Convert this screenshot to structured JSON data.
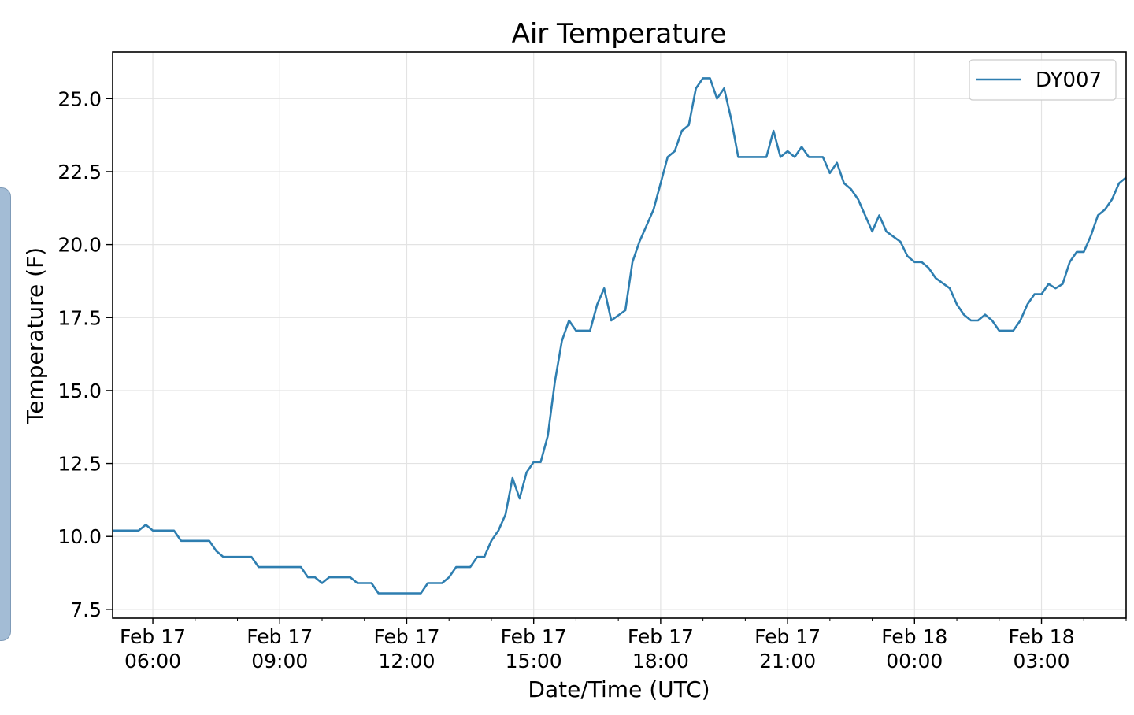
{
  "chart_data": {
    "type": "line",
    "title": "Air Temperature",
    "xlabel": "Date/Time (UTC)",
    "ylabel": "Temperature (F)",
    "ylim": [
      7.2,
      26.6
    ],
    "xlim": [
      "2017-02-17T05:03",
      "2017-02-18T05:00"
    ],
    "yticks": [
      7.5,
      10.0,
      12.5,
      15.0,
      17.5,
      20.0,
      22.5,
      25.0
    ],
    "xticks": [
      {
        "t": "2017-02-17T06:00",
        "date": "Feb 17",
        "time": "06:00"
      },
      {
        "t": "2017-02-17T09:00",
        "date": "Feb 17",
        "time": "09:00"
      },
      {
        "t": "2017-02-17T12:00",
        "date": "Feb 17",
        "time": "12:00"
      },
      {
        "t": "2017-02-17T15:00",
        "date": "Feb 17",
        "time": "15:00"
      },
      {
        "t": "2017-02-17T18:00",
        "date": "Feb 17",
        "time": "18:00"
      },
      {
        "t": "2017-02-17T21:00",
        "date": "Feb 17",
        "time": "21:00"
      },
      {
        "t": "2017-02-18T00:00",
        "date": "Feb 18",
        "time": "00:00"
      },
      {
        "t": "2017-02-18T03:00",
        "date": "Feb 18",
        "time": "03:00"
      }
    ],
    "grid": true,
    "legend_position": "top-right",
    "colors": {
      "series": "#2e7eb0",
      "grid": "#e3e3e3"
    },
    "series": [
      {
        "name": "DY007",
        "points": [
          [
            "2017-02-17T05:03",
            10.2
          ],
          [
            "2017-02-17T05:40",
            10.2
          ],
          [
            "2017-02-17T05:50",
            10.4
          ],
          [
            "2017-02-17T06:00",
            10.2
          ],
          [
            "2017-02-17T06:30",
            10.2
          ],
          [
            "2017-02-17T06:40",
            9.85
          ],
          [
            "2017-02-17T07:20",
            9.85
          ],
          [
            "2017-02-17T07:30",
            9.5
          ],
          [
            "2017-02-17T07:40",
            9.3
          ],
          [
            "2017-02-17T08:20",
            9.3
          ],
          [
            "2017-02-17T08:30",
            8.95
          ],
          [
            "2017-02-17T09:30",
            8.95
          ],
          [
            "2017-02-17T09:40",
            8.6
          ],
          [
            "2017-02-17T09:50",
            8.6
          ],
          [
            "2017-02-17T10:00",
            8.4
          ],
          [
            "2017-02-17T10:10",
            8.6
          ],
          [
            "2017-02-17T10:40",
            8.6
          ],
          [
            "2017-02-17T10:50",
            8.4
          ],
          [
            "2017-02-17T11:10",
            8.4
          ],
          [
            "2017-02-17T11:20",
            8.05
          ],
          [
            "2017-02-17T12:20",
            8.05
          ],
          [
            "2017-02-17T12:30",
            8.4
          ],
          [
            "2017-02-17T12:50",
            8.4
          ],
          [
            "2017-02-17T13:00",
            8.6
          ],
          [
            "2017-02-17T13:10",
            8.95
          ],
          [
            "2017-02-17T13:30",
            8.95
          ],
          [
            "2017-02-17T13:40",
            9.3
          ],
          [
            "2017-02-17T13:50",
            9.3
          ],
          [
            "2017-02-17T14:00",
            9.85
          ],
          [
            "2017-02-17T14:10",
            10.2
          ],
          [
            "2017-02-17T14:20",
            10.75
          ],
          [
            "2017-02-17T14:30",
            12.0
          ],
          [
            "2017-02-17T14:40",
            11.3
          ],
          [
            "2017-02-17T14:50",
            12.2
          ],
          [
            "2017-02-17T15:00",
            12.55
          ],
          [
            "2017-02-17T15:10",
            12.55
          ],
          [
            "2017-02-17T15:20",
            13.45
          ],
          [
            "2017-02-17T15:30",
            15.3
          ],
          [
            "2017-02-17T15:40",
            16.7
          ],
          [
            "2017-02-17T15:50",
            17.4
          ],
          [
            "2017-02-17T16:00",
            17.05
          ],
          [
            "2017-02-17T16:20",
            17.05
          ],
          [
            "2017-02-17T16:30",
            17.95
          ],
          [
            "2017-02-17T16:40",
            18.5
          ],
          [
            "2017-02-17T16:50",
            17.4
          ],
          [
            "2017-02-17T17:10",
            17.75
          ],
          [
            "2017-02-17T17:20",
            19.4
          ],
          [
            "2017-02-17T17:30",
            20.1
          ],
          [
            "2017-02-17T17:40",
            20.65
          ],
          [
            "2017-02-17T17:50",
            21.2
          ],
          [
            "2017-02-17T18:00",
            22.1
          ],
          [
            "2017-02-17T18:10",
            23.0
          ],
          [
            "2017-02-17T18:20",
            23.2
          ],
          [
            "2017-02-17T18:30",
            23.9
          ],
          [
            "2017-02-17T18:40",
            24.1
          ],
          [
            "2017-02-17T18:50",
            25.35
          ],
          [
            "2017-02-17T19:00",
            25.7
          ],
          [
            "2017-02-17T19:10",
            25.7
          ],
          [
            "2017-02-17T19:20",
            25.0
          ],
          [
            "2017-02-17T19:30",
            25.35
          ],
          [
            "2017-02-17T19:40",
            24.3
          ],
          [
            "2017-02-17T19:50",
            23.0
          ],
          [
            "2017-02-17T20:30",
            23.0
          ],
          [
            "2017-02-17T20:40",
            23.9
          ],
          [
            "2017-02-17T20:50",
            23.0
          ],
          [
            "2017-02-17T21:00",
            23.2
          ],
          [
            "2017-02-17T21:10",
            23.0
          ],
          [
            "2017-02-17T21:20",
            23.35
          ],
          [
            "2017-02-17T21:30",
            23.0
          ],
          [
            "2017-02-17T21:50",
            23.0
          ],
          [
            "2017-02-17T22:00",
            22.45
          ],
          [
            "2017-02-17T22:10",
            22.8
          ],
          [
            "2017-02-17T22:20",
            22.1
          ],
          [
            "2017-02-17T22:30",
            21.9
          ],
          [
            "2017-02-17T22:40",
            21.55
          ],
          [
            "2017-02-17T22:50",
            21.0
          ],
          [
            "2017-02-17T23:00",
            20.45
          ],
          [
            "2017-02-17T23:10",
            21.0
          ],
          [
            "2017-02-17T23:20",
            20.45
          ],
          [
            "2017-02-17T23:40",
            20.1
          ],
          [
            "2017-02-17T23:50",
            19.6
          ],
          [
            "2017-02-18T00:00",
            19.4
          ],
          [
            "2017-02-18T00:10",
            19.4
          ],
          [
            "2017-02-18T00:20",
            19.2
          ],
          [
            "2017-02-18T00:30",
            18.85
          ],
          [
            "2017-02-18T00:50",
            18.5
          ],
          [
            "2017-02-18T01:00",
            17.95
          ],
          [
            "2017-02-18T01:10",
            17.6
          ],
          [
            "2017-02-18T01:20",
            17.4
          ],
          [
            "2017-02-18T01:30",
            17.4
          ],
          [
            "2017-02-18T01:40",
            17.6
          ],
          [
            "2017-02-18T01:50",
            17.4
          ],
          [
            "2017-02-18T02:00",
            17.05
          ],
          [
            "2017-02-18T02:20",
            17.05
          ],
          [
            "2017-02-18T02:30",
            17.4
          ],
          [
            "2017-02-18T02:40",
            17.95
          ],
          [
            "2017-02-18T02:50",
            18.3
          ],
          [
            "2017-02-18T03:00",
            18.3
          ],
          [
            "2017-02-18T03:10",
            18.65
          ],
          [
            "2017-02-18T03:20",
            18.5
          ],
          [
            "2017-02-18T03:30",
            18.65
          ],
          [
            "2017-02-18T03:40",
            19.4
          ],
          [
            "2017-02-18T03:50",
            19.75
          ],
          [
            "2017-02-18T04:00",
            19.75
          ],
          [
            "2017-02-18T04:10",
            20.3
          ],
          [
            "2017-02-18T04:20",
            21.0
          ],
          [
            "2017-02-18T04:30",
            21.2
          ],
          [
            "2017-02-18T04:40",
            21.55
          ],
          [
            "2017-02-18T04:50",
            22.1
          ],
          [
            "2017-02-18T05:00",
            22.3
          ]
        ]
      }
    ]
  }
}
